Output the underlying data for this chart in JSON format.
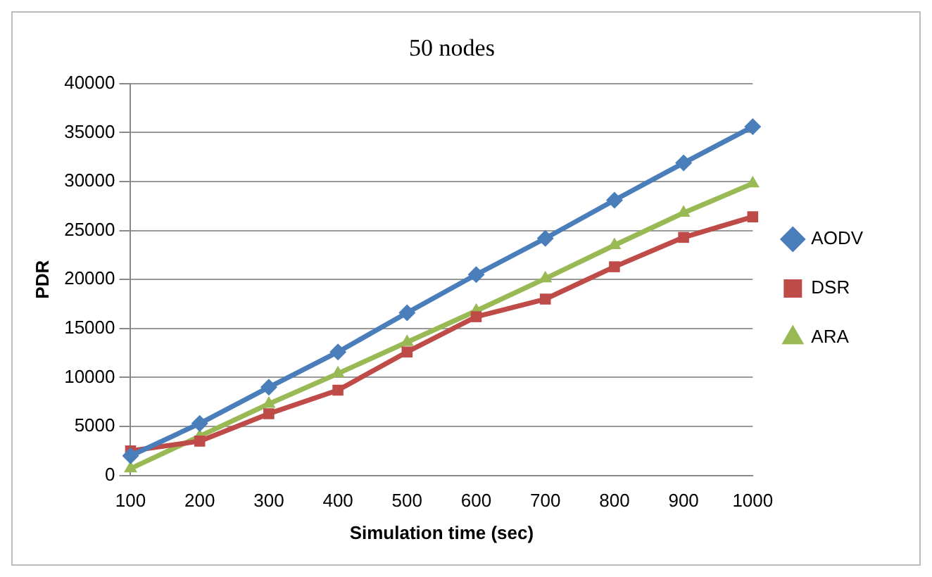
{
  "chart_data": {
    "type": "line",
    "title": "50 nodes",
    "xlabel": "Simulation time (sec)",
    "ylabel": "PDR",
    "categories": [
      "100",
      "200",
      "300",
      "400",
      "500",
      "600",
      "700",
      "800",
      "900",
      "1000"
    ],
    "series": [
      {
        "name": "AODV",
        "color": "#4a7ebb",
        "marker": "diamond",
        "values": [
          2000,
          5300,
          9000,
          12600,
          16600,
          20500,
          24200,
          28100,
          31900,
          35600
        ]
      },
      {
        "name": "DSR",
        "color": "#be4b48",
        "marker": "square",
        "values": [
          2500,
          3500,
          6300,
          8700,
          12600,
          16200,
          18000,
          21300,
          24300,
          26400
        ]
      },
      {
        "name": "ARA",
        "color": "#98b954",
        "marker": "triangle",
        "values": [
          700,
          4000,
          7300,
          10400,
          13600,
          16800,
          20100,
          23500,
          26800,
          29800
        ]
      }
    ],
    "ylim": [
      0,
      40000
    ],
    "yticks": [
      0,
      5000,
      10000,
      15000,
      20000,
      25000,
      30000,
      35000,
      40000
    ],
    "grid": "y",
    "legend": "right"
  }
}
